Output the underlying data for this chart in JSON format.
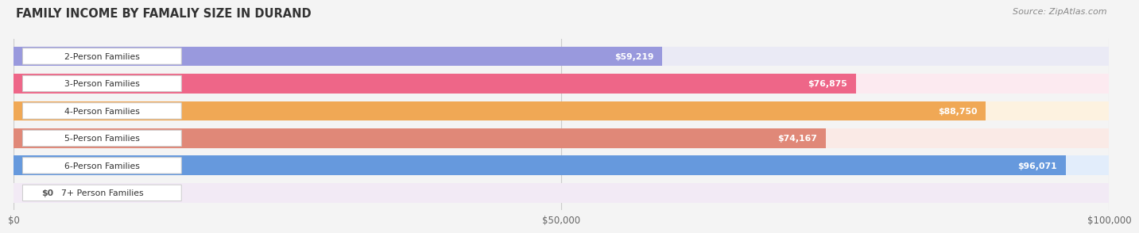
{
  "title": "FAMILY INCOME BY FAMALIY SIZE IN DURAND",
  "source": "Source: ZipAtlas.com",
  "categories": [
    "2-Person Families",
    "3-Person Families",
    "4-Person Families",
    "5-Person Families",
    "6-Person Families",
    "7+ Person Families"
  ],
  "values": [
    59219,
    76875,
    88750,
    74167,
    96071,
    0
  ],
  "bar_colors": [
    "#9999dd",
    "#ee6688",
    "#f0a855",
    "#e08878",
    "#6699dd",
    "#cc99cc"
  ],
  "bar_bg_colors": [
    "#eaeaf5",
    "#fceaf0",
    "#fdf2e0",
    "#faeae6",
    "#e2edfb",
    "#f2eaf5"
  ],
  "value_labels": [
    "$59,219",
    "$76,875",
    "$88,750",
    "$74,167",
    "$96,071",
    "$0"
  ],
  "xlim": [
    0,
    100000
  ],
  "xticks": [
    0,
    50000,
    100000
  ],
  "xticklabels": [
    "$0",
    "$50,000",
    "$100,000"
  ],
  "fig_width": 14.06,
  "fig_height": 3.05,
  "background_color": "#f4f4f4"
}
